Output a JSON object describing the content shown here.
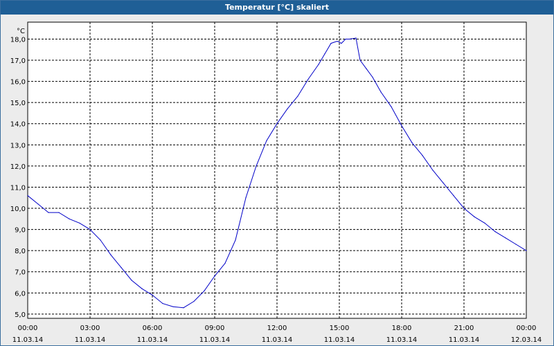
{
  "window": {
    "title": "Temperatur [°C] skaliert"
  },
  "colors": {
    "line": "#0000c8",
    "plot_bg": "#ffffff",
    "title_bar": "#1f5f96",
    "grid": "#000000"
  },
  "chart_data": {
    "type": "line",
    "title": "Temperatur [°C] skaliert",
    "ylabel": "°C",
    "xlabel": "",
    "ylim": [
      4.8,
      18.8
    ],
    "xlim": [
      0,
      24
    ],
    "y_ticks": [
      "5,0",
      "6,0",
      "7,0",
      "8,0",
      "9,0",
      "10,0",
      "11,0",
      "12,0",
      "13,0",
      "14,0",
      "15,0",
      "16,0",
      "17,0",
      "18,0"
    ],
    "x_ticks": [
      {
        "time": "00:00",
        "date": "11.03.14"
      },
      {
        "time": "03:00",
        "date": "11.03.14"
      },
      {
        "time": "06:00",
        "date": "11.03.14"
      },
      {
        "time": "09:00",
        "date": "11.03.14"
      },
      {
        "time": "12:00",
        "date": "11.03.14"
      },
      {
        "time": "15:00",
        "date": "11.03.14"
      },
      {
        "time": "18:00",
        "date": "11.03.14"
      },
      {
        "time": "21:00",
        "date": "11.03.14"
      },
      {
        "time": "00:00",
        "date": "12.03.14"
      }
    ],
    "grid": true,
    "series": [
      {
        "x": [
          0,
          0.5,
          1,
          1.5,
          2,
          2.5,
          3,
          3.5,
          4,
          4.5,
          5,
          5.5,
          6,
          6.5,
          7,
          7.5,
          8,
          8.5,
          9,
          9.5,
          10,
          10.5,
          11,
          11.5,
          12,
          12.5,
          13,
          13.5,
          14,
          14.3,
          14.6,
          14.9,
          15.1,
          15.3,
          15.5,
          15.8,
          16,
          16.3,
          16.6,
          17,
          17.5,
          18,
          18.5,
          19,
          19.5,
          20,
          20.5,
          21,
          21.5,
          22,
          22.5,
          23,
          23.5,
          24
        ],
        "values": [
          10.6,
          10.2,
          9.8,
          9.8,
          9.5,
          9.3,
          9.0,
          8.5,
          7.8,
          7.2,
          6.6,
          6.2,
          5.9,
          5.5,
          5.35,
          5.3,
          5.6,
          6.1,
          6.8,
          7.4,
          8.5,
          10.5,
          12.0,
          13.2,
          14.0,
          14.7,
          15.3,
          16.1,
          16.8,
          17.3,
          17.8,
          17.9,
          17.8,
          18.0,
          18.0,
          18.05,
          17.0,
          16.6,
          16.2,
          15.5,
          14.8,
          13.9,
          13.1,
          12.5,
          11.8,
          11.2,
          10.6,
          10.0,
          9.6,
          9.3,
          8.9,
          8.6,
          8.3,
          8.0
        ]
      }
    ]
  }
}
